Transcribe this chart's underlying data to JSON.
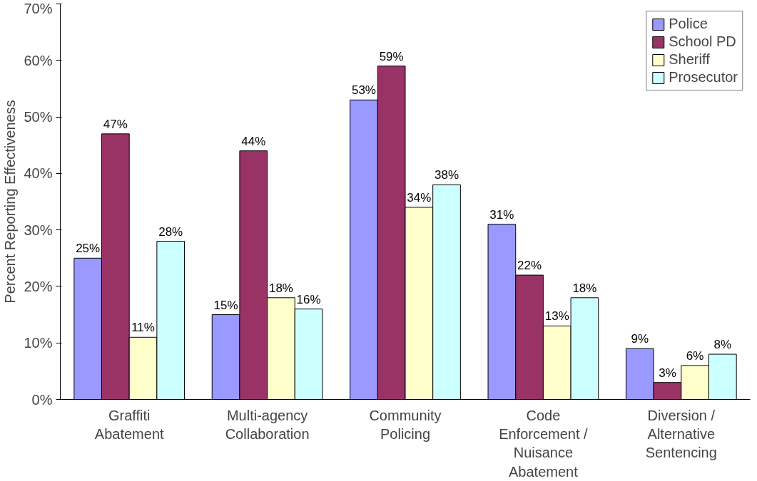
{
  "chart_data": {
    "type": "bar",
    "ylabel": "Percent Reporting Effectiveness",
    "categories": [
      "Graffiti Abatement",
      "Multi-agency Collaboration",
      "Community Policing",
      "Code Enforcement / Nuisance Abatement",
      "Diversion / Alternative Sentencing"
    ],
    "series": [
      {
        "name": "Police",
        "color": "#9999ff",
        "values": [
          25,
          15,
          53,
          31,
          9
        ],
        "value_labels": [
          "25%",
          "15%",
          "53%",
          "31%",
          "9%"
        ]
      },
      {
        "name": "School PD",
        "color": "#993366",
        "values": [
          47,
          44,
          59,
          22,
          3
        ],
        "value_labels": [
          "47%",
          "44%",
          "59%",
          "22%",
          "3%"
        ]
      },
      {
        "name": "Sheriff",
        "color": "#ffffcc",
        "values": [
          11,
          18,
          34,
          13,
          6
        ],
        "value_labels": [
          "11%",
          "18%",
          "34%",
          "13%",
          "6%"
        ]
      },
      {
        "name": "Prosecutor",
        "color": "#ccffff",
        "values": [
          28,
          16,
          38,
          18,
          8
        ],
        "value_labels": [
          "28%",
          "16%",
          "38%",
          "18%",
          "8%"
        ]
      }
    ],
    "ylim": [
      0,
      70
    ],
    "yticks": [
      {
        "value": 0,
        "label": "0%"
      },
      {
        "value": 10,
        "label": "10%"
      },
      {
        "value": 20,
        "label": "20%"
      },
      {
        "value": 30,
        "label": "30%"
      },
      {
        "value": 40,
        "label": "40%"
      },
      {
        "value": 50,
        "label": "50%"
      },
      {
        "value": 60,
        "label": "60%"
      },
      {
        "value": 70,
        "label": "70%"
      }
    ],
    "grid": false,
    "legend": "top right"
  }
}
